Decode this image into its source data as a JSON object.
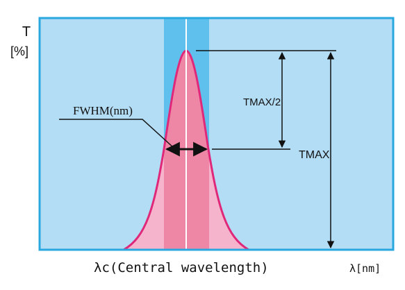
{
  "y_axis": {
    "symbol": "T",
    "unit": "[%]"
  },
  "x_axis": {
    "center_label": "λc(Central wavelength)",
    "unit": "λ[nm]"
  },
  "labels": {
    "fwhm": "FWHM(nm)",
    "tmax_half": "TMAX/2",
    "tmax": "TMAX"
  },
  "colors": {
    "background": "#b3dcf5",
    "frame": "#29a8e0",
    "band": "#5fc0ee",
    "curve_fill": "#f6b4cc",
    "curve_band_fill": "#ee86a6",
    "curve_stroke": "#e0287a",
    "center_line": "#ffffff",
    "dimension_lines": "#111111"
  }
}
